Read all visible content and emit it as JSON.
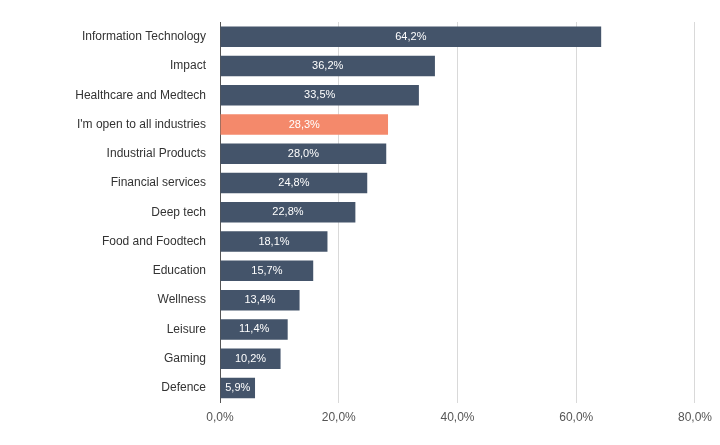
{
  "chart_data": {
    "type": "bar",
    "orientation": "horizontal",
    "categories": [
      "Information Technology",
      "Impact",
      "Healthcare and Medtech",
      "I'm open to all industries",
      "Industrial Products",
      "Financial services",
      "Deep tech",
      "Food and Foodtech",
      "Education",
      "Wellness",
      "Leisure",
      "Gaming",
      "Defence"
    ],
    "values": [
      64.2,
      36.2,
      33.5,
      28.3,
      28.0,
      24.8,
      22.8,
      18.1,
      15.7,
      13.4,
      11.4,
      10.2,
      5.9
    ],
    "value_labels": [
      "64,2%",
      "36,2%",
      "33,5%",
      "28,3%",
      "28,0%",
      "24,8%",
      "22,8%",
      "18,1%",
      "15,7%",
      "13,4%",
      "11,4%",
      "10,2%",
      "5,9%"
    ],
    "colors": [
      "#44546a",
      "#44546a",
      "#44546a",
      "#f4896b",
      "#44546a",
      "#44546a",
      "#44546a",
      "#44546a",
      "#44546a",
      "#44546a",
      "#44546a",
      "#44546a",
      "#44546a"
    ],
    "xlim": [
      0,
      80
    ],
    "xticks": [
      {
        "value": 0,
        "label": "0,0%"
      },
      {
        "value": 20,
        "label": "20,0%"
      },
      {
        "value": 40,
        "label": "40,0%"
      },
      {
        "value": 60,
        "label": "60,0%"
      },
      {
        "value": 80,
        "label": "80,0%"
      }
    ],
    "grid": true,
    "data_labels": true
  }
}
